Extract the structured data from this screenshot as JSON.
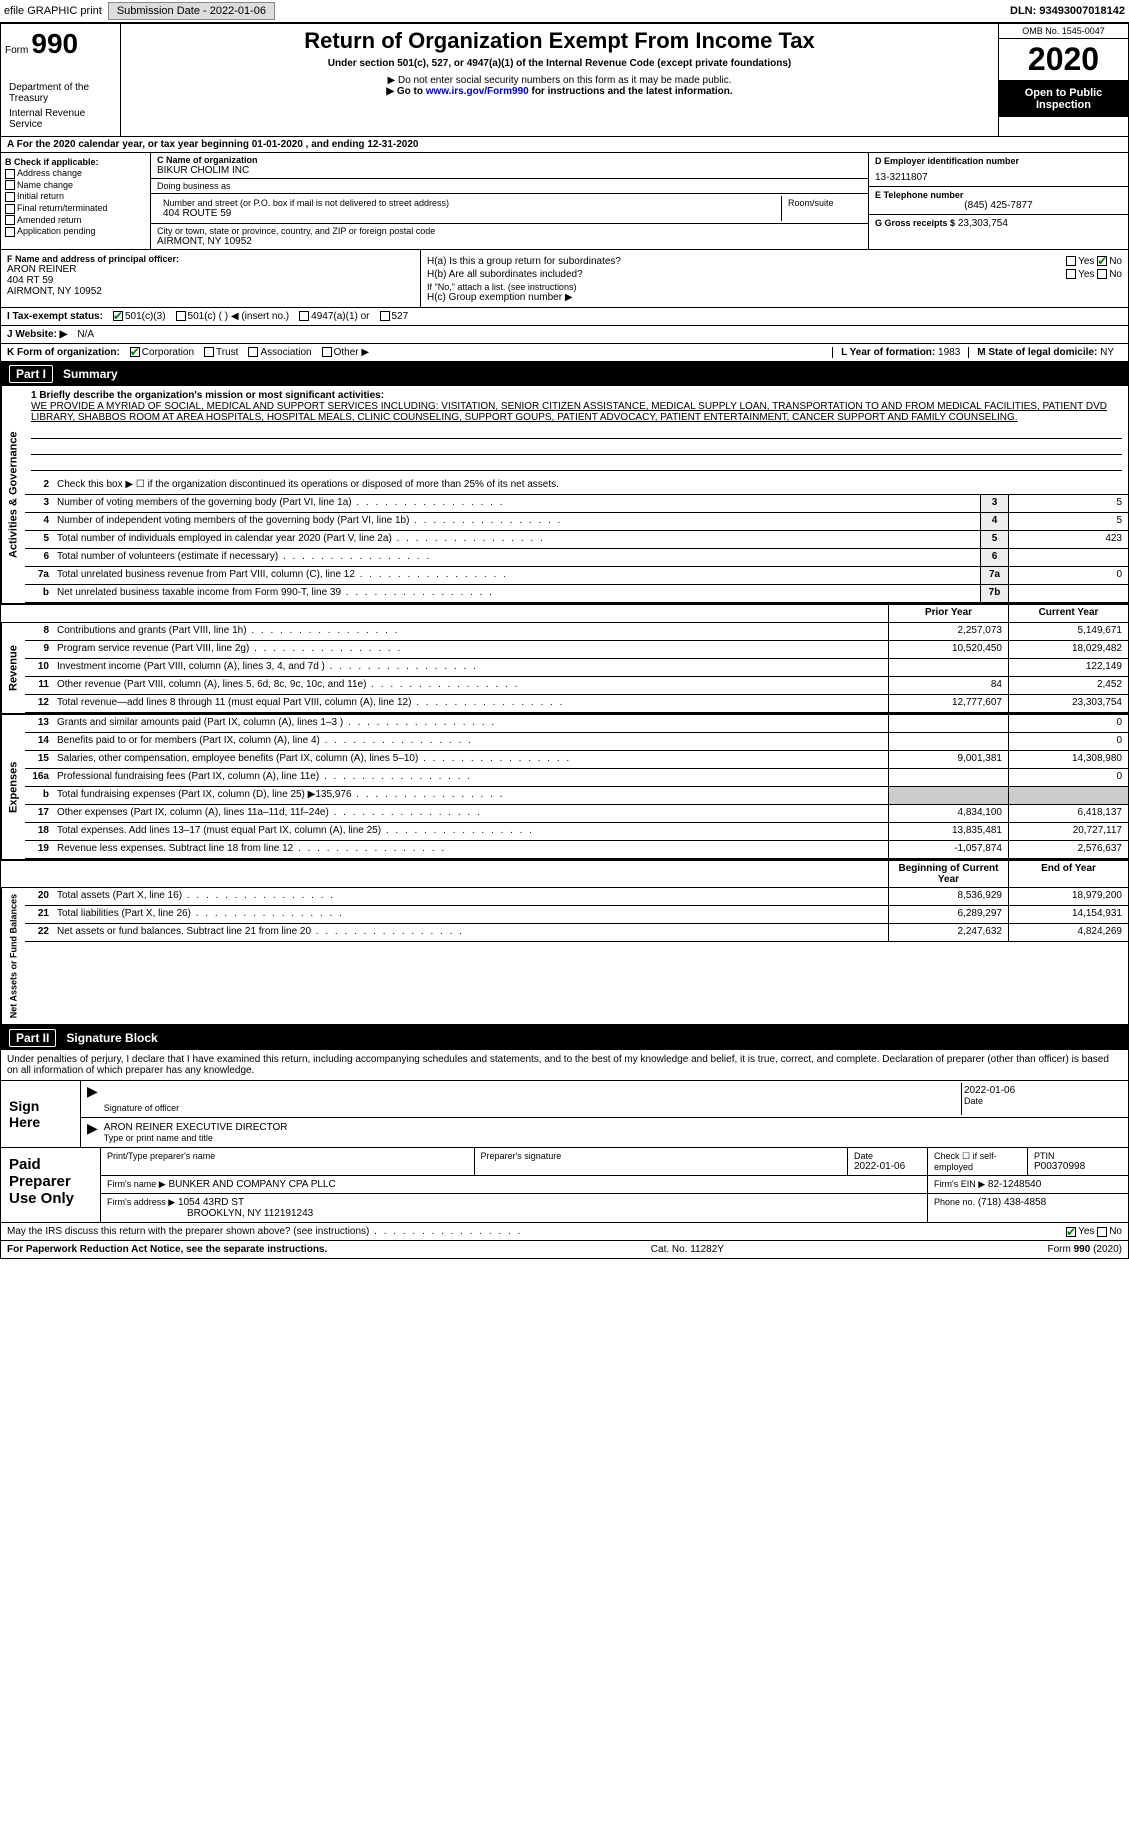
{
  "top_bar": {
    "efile_label": "efile GRAPHIC print",
    "submission_label": "Submission Date - 2022-01-06",
    "dln_label": "DLN: 93493007018142"
  },
  "header": {
    "form_label": "Form",
    "form_number": "990",
    "title": "Return of Organization Exempt From Income Tax",
    "subtitle": "Under section 501(c), 527, or 4947(a)(1) of the Internal Revenue Code (except private foundations)",
    "ssn_warning": "▶ Do not enter social security numbers on this form as it may be made public.",
    "goto": "▶ Go to www.irs.gov/Form990 for instructions and the latest information.",
    "goto_url": "www.irs.gov/Form990",
    "dept": "Department of the Treasury",
    "irs": "Internal Revenue Service",
    "omb": "OMB No. 1545-0047",
    "tax_year": "2020",
    "open_inspect": "Open to Public Inspection"
  },
  "period": {
    "line_a": "A For the 2020 calendar year, or tax year beginning 01-01-2020    , and ending 12-31-2020"
  },
  "box_b": {
    "header": "B Check if applicable:",
    "opts": [
      "Address change",
      "Name change",
      "Initial return",
      "Final return/terminated",
      "Amended return",
      "Application pending"
    ]
  },
  "box_c": {
    "name_label": "C Name of organization",
    "name": "BIKUR CHOLIM INC",
    "dba_label": "Doing business as",
    "dba": "",
    "addr_label": "Number and street (or P.O. box if mail is not delivered to street address)",
    "addr": "404 ROUTE 59",
    "room_label": "Room/suite",
    "city_label": "City or town, state or province, country, and ZIP or foreign postal code",
    "city": "AIRMONT, NY  10952"
  },
  "box_d": {
    "ein_label": "D Employer identification number",
    "ein": "13-3211807",
    "phone_label": "E Telephone number",
    "phone": "(845) 425-7877",
    "gross_label": "G Gross receipts $",
    "gross": "23,303,754"
  },
  "box_f": {
    "label": "F  Name and address of principal officer:",
    "name": "ARON REINER",
    "addr1": "404 RT 59",
    "addr2": "AIRMONT, NY  10952"
  },
  "box_h": {
    "ha_label": "H(a)  Is this a group return for subordinates?",
    "hb_label": "H(b)  Are all subordinates included?",
    "hb_note": "If \"No,\" attach a list. (see instructions)",
    "hc_label": "H(c)  Group exemption number ▶",
    "yes": "Yes",
    "no": "No"
  },
  "box_i": {
    "label": "I  Tax-exempt status:",
    "c3": "501(c)(3)",
    "c": "501(c) (   ) ◀ (insert no.)",
    "a1": "4947(a)(1) or",
    "s527": "527"
  },
  "box_j": {
    "label": "J  Website: ▶",
    "value": "N/A"
  },
  "box_k": {
    "label": "K Form of organization:",
    "corp": "Corporation",
    "trust": "Trust",
    "assoc": "Association",
    "other": "Other ▶"
  },
  "box_l": {
    "label": "L Year of formation:",
    "value": "1983"
  },
  "box_m": {
    "label": "M State of legal domicile:",
    "value": "NY"
  },
  "part1": {
    "header": "Summary",
    "part_num": "Part I",
    "line1_label": "1  Briefly describe the organization's mission or most significant activities:",
    "mission": "WE PROVIDE A MYRIAD OF SOCIAL, MEDICAL AND SUPPORT SERVICES INCLUDING: VISITATION, SENIOR CITIZEN ASSISTANCE, MEDICAL SUPPLY LOAN, TRANSPORTATION TO AND FROM MEDICAL FACILITIES, PATIENT DVD LIBRARY, SHABBOS ROOM AT AREA HOSPITALS, HOSPITAL MEALS, CLINIC COUNSELING, SUPPORT GOUPS, PATIENT ADVOCACY, PATIENT ENTERTAINMENT, CANCER SUPPORT AND FAMILY COUNSELING.",
    "line2": "Check this box ▶ ☐ if the organization discontinued its operations or disposed of more than 25% of its net assets.",
    "lines_gov": [
      {
        "n": "3",
        "d": "Number of voting members of the governing body (Part VI, line 1a)",
        "box": "3",
        "v": "5"
      },
      {
        "n": "4",
        "d": "Number of independent voting members of the governing body (Part VI, line 1b)",
        "box": "4",
        "v": "5"
      },
      {
        "n": "5",
        "d": "Total number of individuals employed in calendar year 2020 (Part V, line 2a)",
        "box": "5",
        "v": "423"
      },
      {
        "n": "6",
        "d": "Total number of volunteers (estimate if necessary)",
        "box": "6",
        "v": ""
      },
      {
        "n": "7a",
        "d": "Total unrelated business revenue from Part VIII, column (C), line 12",
        "box": "7a",
        "v": "0"
      },
      {
        "n": "b",
        "d": "Net unrelated business taxable income from Form 990-T, line 39",
        "box": "7b",
        "v": ""
      }
    ],
    "hdr_prior": "Prior Year",
    "hdr_current": "Current Year",
    "lines_rev": [
      {
        "n": "8",
        "d": "Contributions and grants (Part VIII, line 1h)",
        "p": "2,257,073",
        "c": "5,149,671"
      },
      {
        "n": "9",
        "d": "Program service revenue (Part VIII, line 2g)",
        "p": "10,520,450",
        "c": "18,029,482"
      },
      {
        "n": "10",
        "d": "Investment income (Part VIII, column (A), lines 3, 4, and 7d )",
        "p": "",
        "c": "122,149"
      },
      {
        "n": "11",
        "d": "Other revenue (Part VIII, column (A), lines 5, 6d, 8c, 9c, 10c, and 11e)",
        "p": "84",
        "c": "2,452"
      },
      {
        "n": "12",
        "d": "Total revenue—add lines 8 through 11 (must equal Part VIII, column (A), line 12)",
        "p": "12,777,607",
        "c": "23,303,754"
      }
    ],
    "lines_exp": [
      {
        "n": "13",
        "d": "Grants and similar amounts paid (Part IX, column (A), lines 1–3 )",
        "p": "",
        "c": "0"
      },
      {
        "n": "14",
        "d": "Benefits paid to or for members (Part IX, column (A), line 4)",
        "p": "",
        "c": "0"
      },
      {
        "n": "15",
        "d": "Salaries, other compensation, employee benefits (Part IX, column (A), lines 5–10)",
        "p": "9,001,381",
        "c": "14,308,980"
      },
      {
        "n": "16a",
        "d": "Professional fundraising fees (Part IX, column (A), line 11e)",
        "p": "",
        "c": "0"
      },
      {
        "n": "b",
        "d": "Total fundraising expenses (Part IX, column (D), line 25) ▶135,976",
        "p": "GRAY",
        "c": "GRAY"
      },
      {
        "n": "17",
        "d": "Other expenses (Part IX, column (A), lines 11a–11d, 11f–24e)",
        "p": "4,834,100",
        "c": "6,418,137"
      },
      {
        "n": "18",
        "d": "Total expenses. Add lines 13–17 (must equal Part IX, column (A), line 25)",
        "p": "13,835,481",
        "c": "20,727,117"
      },
      {
        "n": "19",
        "d": "Revenue less expenses. Subtract line 18 from line 12",
        "p": "-1,057,874",
        "c": "2,576,637"
      }
    ],
    "hdr_boy": "Beginning of Current Year",
    "hdr_eoy": "End of Year",
    "lines_net": [
      {
        "n": "20",
        "d": "Total assets (Part X, line 16)",
        "p": "8,536,929",
        "c": "18,979,200"
      },
      {
        "n": "21",
        "d": "Total liabilities (Part X, line 26)",
        "p": "6,289,297",
        "c": "14,154,931"
      },
      {
        "n": "22",
        "d": "Net assets or fund balances. Subtract line 21 from line 20",
        "p": "2,247,632",
        "c": "4,824,269"
      }
    ],
    "side_gov": "Activities & Governance",
    "side_rev": "Revenue",
    "side_exp": "Expenses",
    "side_net": "Net Assets or Fund Balances"
  },
  "part2": {
    "part_num": "Part II",
    "header": "Signature Block",
    "declare": "Under penalties of perjury, I declare that I have examined this return, including accompanying schedules and statements, and to the best of my knowledge and belief, it is true, correct, and complete. Declaration of preparer (other than officer) is based on all information of which preparer has any knowledge.",
    "sign_here": "Sign Here",
    "sig_officer_label": "Signature of officer",
    "date_label": "Date",
    "sig_date": "2022-01-06",
    "officer_name": "ARON REINER EXECUTIVE DIRECTOR",
    "officer_name_label": "Type or print name and title",
    "paid_label": "Paid Preparer Use Only",
    "prep_name_label": "Print/Type preparer's name",
    "prep_sig_label": "Preparer's signature",
    "prep_date_label": "Date",
    "prep_date": "2022-01-06",
    "check_self": "Check ☐ if self-employed",
    "ptin_label": "PTIN",
    "ptin": "P00370998",
    "firm_name_label": "Firm's name    ▶",
    "firm_name": "BUNKER AND COMPANY CPA PLLC",
    "firm_ein_label": "Firm's EIN ▶",
    "firm_ein": "82-1248540",
    "firm_addr_label": "Firm's address ▶",
    "firm_addr1": "1054 43RD ST",
    "firm_addr2": "BROOKLYN, NY  112191243",
    "phone_label": "Phone no.",
    "phone": "(718) 438-4858",
    "discuss": "May the IRS discuss this return with the preparer shown above? (see instructions)",
    "yes": "Yes",
    "no": "No"
  },
  "footer": {
    "pra": "For Paperwork Reduction Act Notice, see the separate instructions.",
    "cat": "Cat. No. 11282Y",
    "form": "Form 990 (2020)"
  }
}
